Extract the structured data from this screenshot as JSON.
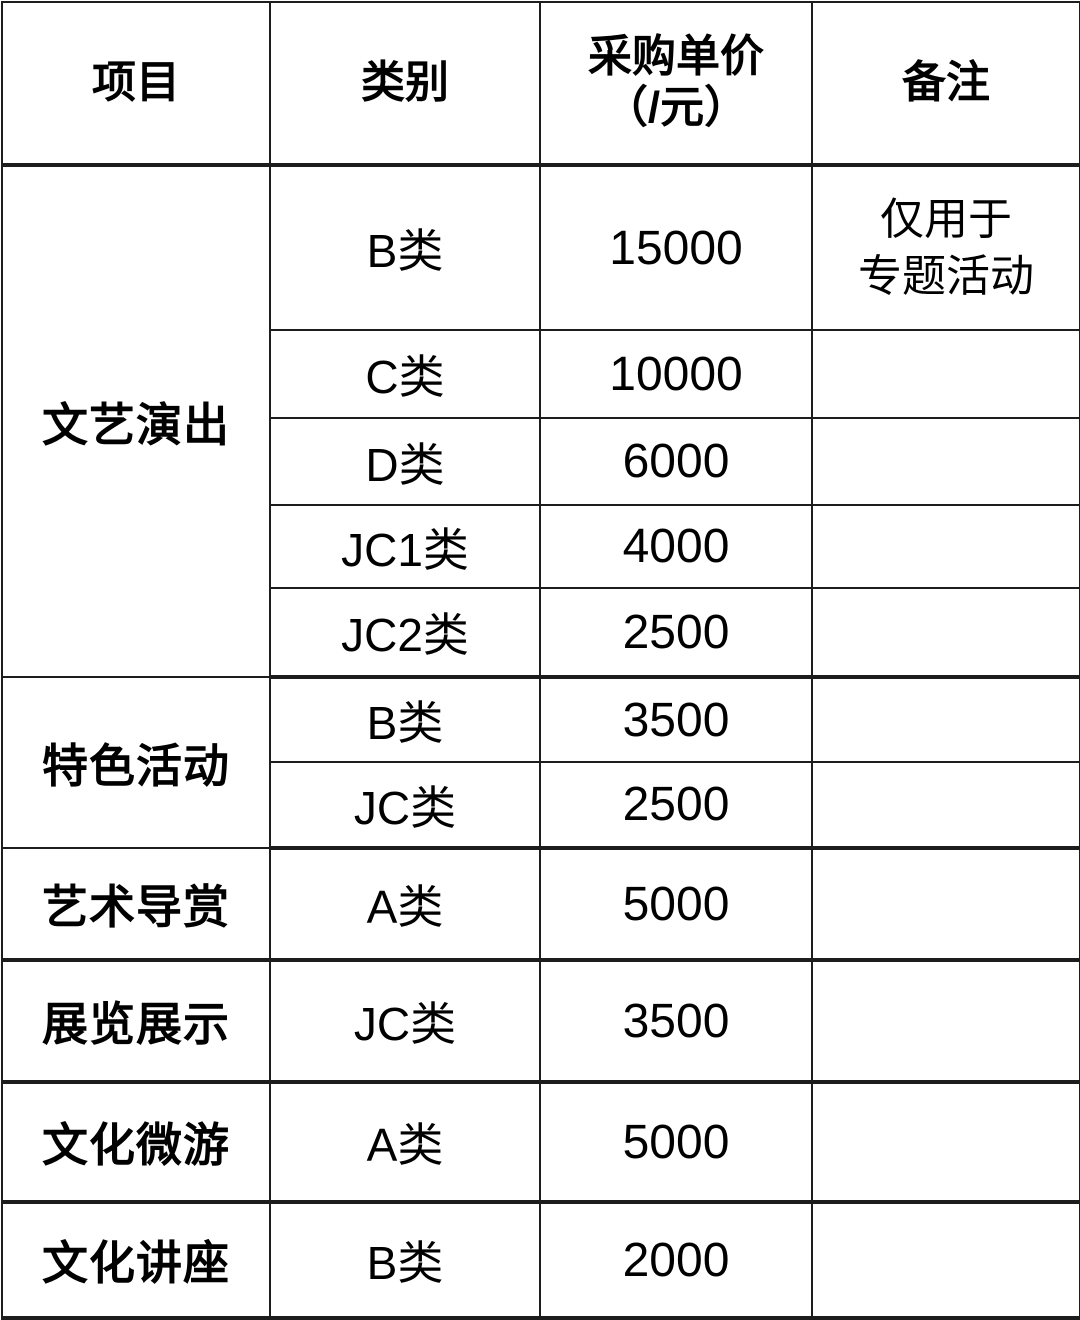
{
  "table": {
    "title": "purchase-unit-price-table",
    "colors": {
      "border": "#1d1d1d",
      "text": "#000000",
      "background": "#ffffff"
    },
    "headers": {
      "project": "项目",
      "category": "类别",
      "price_line1": "采购单价",
      "price_line2": "（/元）",
      "note": "备注"
    },
    "groups": [
      {
        "project": "文艺演出",
        "items": [
          {
            "category": "B类",
            "price": "15000",
            "note_lines": [
              "仅用于",
              "专题活动"
            ]
          },
          {
            "category": "C类",
            "price": "10000",
            "note_lines": []
          },
          {
            "category": "D类",
            "price": "6000",
            "note_lines": []
          },
          {
            "category": "JC1类",
            "price": "4000",
            "note_lines": []
          },
          {
            "category": "JC2类",
            "price": "2500",
            "note_lines": []
          }
        ]
      },
      {
        "project": "特色活动",
        "items": [
          {
            "category": "B类",
            "price": "3500",
            "note_lines": []
          },
          {
            "category": "JC类",
            "price": "2500",
            "note_lines": []
          }
        ]
      },
      {
        "project": "艺术导赏",
        "items": [
          {
            "category": "A类",
            "price": "5000",
            "note_lines": []
          }
        ]
      },
      {
        "project": "展览展示",
        "items": [
          {
            "category": "JC类",
            "price": "3500",
            "note_lines": []
          }
        ]
      },
      {
        "project": "文化微游",
        "items": [
          {
            "category": "A类",
            "price": "5000",
            "note_lines": []
          }
        ]
      },
      {
        "project": "文化讲座",
        "items": [
          {
            "category": "B类",
            "price": "2000",
            "note_lines": []
          }
        ]
      }
    ]
  }
}
